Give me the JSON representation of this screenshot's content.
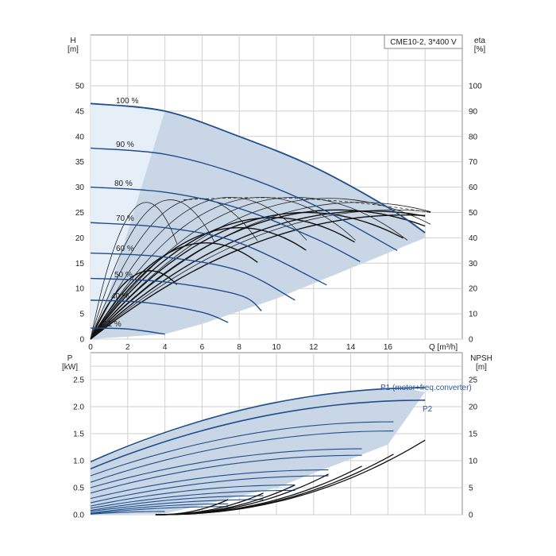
{
  "chart_data": [
    {
      "type": "line",
      "title": "CME10-2, 3*400 V",
      "xlabel": "Q [m³/h]",
      "ylabel": "H",
      "ylabel_unit": "[m]",
      "y2label": "eta",
      "y2label_unit": "[%]",
      "xlim": [
        0,
        20
      ],
      "ylim": [
        0,
        50
      ],
      "y2lim": [
        0,
        100
      ],
      "x_ticks": [
        "0",
        "2",
        "4",
        "6",
        "8",
        "10",
        "12",
        "14",
        "16"
      ],
      "y_ticks": [
        "0",
        "5",
        "10",
        "15",
        "20",
        "25",
        "30",
        "35",
        "40",
        "45",
        "50"
      ],
      "y2_ticks": [
        "0",
        "10",
        "20",
        "30",
        "40",
        "50",
        "60",
        "70",
        "80",
        "90",
        "100"
      ],
      "grid": true,
      "series": [
        {
          "name": "100 %",
          "x": [
            0,
            4,
            8,
            12,
            16,
            18
          ],
          "values": [
            46.5,
            45,
            40,
            34,
            26,
            21
          ],
          "color": "#1f4e8c"
        },
        {
          "name": "90 %",
          "x": [
            0,
            4,
            8,
            12,
            16.5
          ],
          "values": [
            37.7,
            36.5,
            32.5,
            26.5,
            17.5
          ],
          "color": "#1f4e8c"
        },
        {
          "name": "80 %",
          "x": [
            0,
            4,
            8,
            12,
            14.5
          ],
          "values": [
            30,
            29,
            25.8,
            20,
            15.3
          ],
          "color": "#1f4e8c"
        },
        {
          "name": "70 %",
          "x": [
            0,
            4,
            8,
            12.7
          ],
          "values": [
            23,
            22,
            19,
            10.7
          ],
          "color": "#1f4e8c"
        },
        {
          "name": "60 %",
          "x": [
            0,
            4,
            8,
            11
          ],
          "values": [
            17,
            16.2,
            13.5,
            7.7
          ],
          "color": "#1f4e8c"
        },
        {
          "name": "50 %",
          "x": [
            0,
            4,
            8,
            9.2
          ],
          "values": [
            12,
            11.3,
            8.7,
            5.6
          ],
          "color": "#1f4e8c"
        },
        {
          "name": "40 %",
          "x": [
            0,
            3,
            6,
            7.4
          ],
          "values": [
            7.7,
            7.2,
            5.3,
            3.3
          ],
          "color": "#1f4e8c"
        },
        {
          "name": "21 %",
          "x": [
            0,
            2,
            4
          ],
          "values": [
            2.2,
            2,
            1
          ],
          "color": "#1f4e8c"
        }
      ],
      "operating_area": {
        "x": [
          0,
          4,
          8,
          12,
          16,
          18,
          18,
          14,
          10,
          6,
          4,
          0
        ],
        "values": [
          46.5,
          45,
          40,
          34,
          26,
          21,
          20,
          14,
          8,
          3,
          1,
          0
        ]
      }
    },
    {
      "type": "line",
      "xlabel": "",
      "ylabel": "P",
      "ylabel_unit": "[kW]",
      "y2label": "NPSH",
      "y2label_unit": "[m]",
      "xlim": [
        0,
        20
      ],
      "ylim": [
        0,
        2.75
      ],
      "y2lim": [
        0,
        27.5
      ],
      "y_ticks": [
        "0.0",
        "0.5",
        "1.0",
        "1.5",
        "2.0",
        "2.5"
      ],
      "y2_ticks": [
        "0",
        "5",
        "10",
        "15",
        "20",
        "25"
      ],
      "grid": true,
      "series": [
        {
          "name": "P1 (motor+freq.converter)",
          "x": [
            0,
            4,
            8,
            12,
            16,
            18
          ],
          "values": [
            0.98,
            1.5,
            1.95,
            2.2,
            2.35,
            2.27
          ],
          "color": "#1f4e8c"
        },
        {
          "name": "P2",
          "x": [
            0,
            4,
            8,
            12,
            16,
            18
          ],
          "values": [
            0.85,
            1.35,
            1.75,
            2.0,
            2.12,
            2.05
          ],
          "color": "#1f4e8c"
        },
        {
          "name": "NPSH",
          "x": [
            4,
            8,
            12,
            16,
            18
          ],
          "values": [
            0.5,
            2.5,
            5.5,
            10,
            14
          ],
          "color": "#111111"
        }
      ]
    }
  ]
}
